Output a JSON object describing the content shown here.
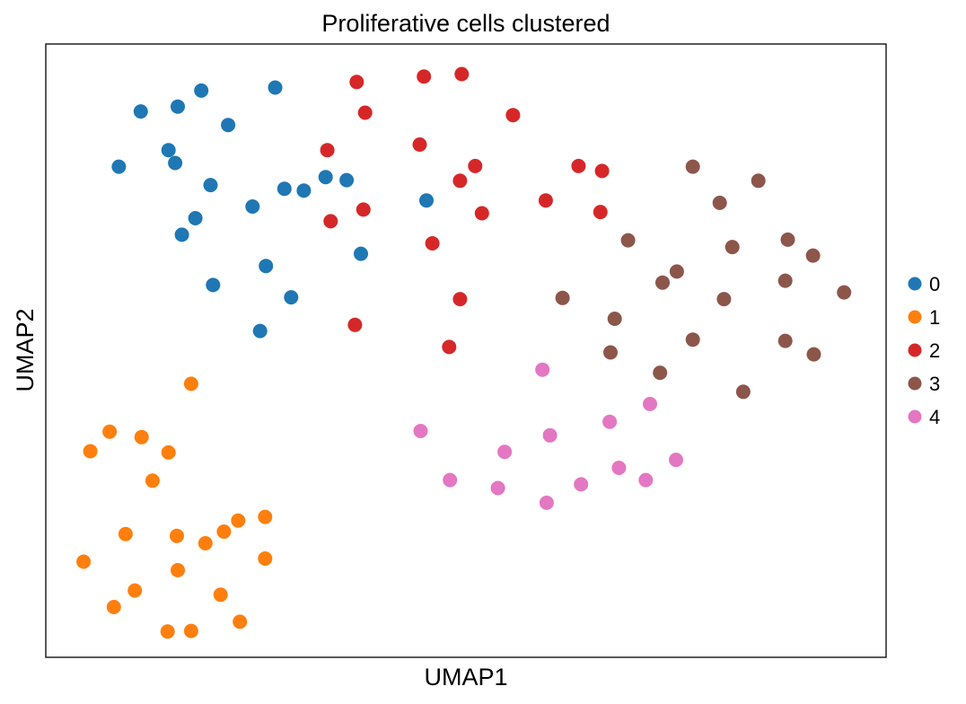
{
  "chart_data": {
    "type": "scatter",
    "title": "Proliferative cells clustered",
    "xlabel": "UMAP1",
    "ylabel": "UMAP2",
    "xlim": [
      0,
      100
    ],
    "ylim": [
      0,
      100
    ],
    "grid": false,
    "legend_position": "right",
    "series": [
      {
        "name": "0",
        "color": "#1f77b4",
        "points": [
          [
            8.7,
            80.0
          ],
          [
            11.3,
            89.0
          ],
          [
            14.6,
            82.7
          ],
          [
            15.7,
            89.8
          ],
          [
            15.4,
            80.6
          ],
          [
            18.5,
            92.4
          ],
          [
            16.2,
            68.9
          ],
          [
            17.8,
            71.6
          ],
          [
            21.7,
            86.8
          ],
          [
            19.6,
            77.0
          ],
          [
            19.9,
            60.7
          ],
          [
            24.6,
            73.5
          ],
          [
            27.3,
            92.9
          ],
          [
            26.2,
            63.8
          ],
          [
            29.2,
            58.7
          ],
          [
            28.4,
            76.4
          ],
          [
            30.7,
            76.1
          ],
          [
            33.3,
            78.3
          ],
          [
            35.8,
            77.8
          ],
          [
            37.5,
            65.8
          ],
          [
            25.5,
            53.2
          ],
          [
            45.3,
            74.5
          ]
        ]
      },
      {
        "name": "1",
        "color": "#ff7f0e",
        "points": [
          [
            17.3,
            44.6
          ],
          [
            7.6,
            36.8
          ],
          [
            11.4,
            35.9
          ],
          [
            5.3,
            33.6
          ],
          [
            14.6,
            33.4
          ],
          [
            12.7,
            28.8
          ],
          [
            9.5,
            20.1
          ],
          [
            15.6,
            19.8
          ],
          [
            19.0,
            18.6
          ],
          [
            21.2,
            20.5
          ],
          [
            22.9,
            22.3
          ],
          [
            26.1,
            22.9
          ],
          [
            4.5,
            15.6
          ],
          [
            15.7,
            14.2
          ],
          [
            10.6,
            10.9
          ],
          [
            8.1,
            8.2
          ],
          [
            20.8,
            10.2
          ],
          [
            26.1,
            16.1
          ],
          [
            14.5,
            4.2
          ],
          [
            17.3,
            4.3
          ],
          [
            23.1,
            5.8
          ]
        ]
      },
      {
        "name": "2",
        "color": "#d62728",
        "points": [
          [
            37.0,
            93.8
          ],
          [
            45.0,
            94.7
          ],
          [
            49.5,
            95.1
          ],
          [
            38.0,
            88.8
          ],
          [
            55.6,
            88.4
          ],
          [
            33.5,
            82.7
          ],
          [
            44.5,
            83.6
          ],
          [
            51.1,
            80.1
          ],
          [
            49.3,
            77.7
          ],
          [
            63.4,
            80.1
          ],
          [
            66.2,
            79.3
          ],
          [
            33.9,
            71.1
          ],
          [
            37.8,
            73.0
          ],
          [
            51.9,
            72.4
          ],
          [
            59.5,
            74.5
          ],
          [
            66.0,
            72.6
          ],
          [
            46.0,
            67.5
          ],
          [
            49.3,
            58.4
          ],
          [
            36.8,
            54.2
          ],
          [
            48.0,
            50.6
          ]
        ]
      },
      {
        "name": "3",
        "color": "#8c564b",
        "points": [
          [
            77.0,
            80.0
          ],
          [
            84.8,
            77.7
          ],
          [
            80.2,
            74.1
          ],
          [
            69.3,
            68.0
          ],
          [
            81.7,
            66.9
          ],
          [
            88.3,
            68.1
          ],
          [
            91.3,
            65.5
          ],
          [
            75.1,
            62.9
          ],
          [
            73.4,
            61.1
          ],
          [
            88.0,
            61.4
          ],
          [
            61.5,
            58.6
          ],
          [
            80.7,
            58.4
          ],
          [
            95.0,
            59.5
          ],
          [
            67.7,
            55.2
          ],
          [
            77.0,
            51.8
          ],
          [
            88.0,
            51.6
          ],
          [
            67.2,
            49.7
          ],
          [
            91.4,
            49.4
          ],
          [
            73.1,
            46.4
          ],
          [
            83.0,
            43.3
          ]
        ]
      },
      {
        "name": "4",
        "color": "#e377c2",
        "points": [
          [
            59.1,
            46.9
          ],
          [
            71.9,
            41.3
          ],
          [
            67.1,
            38.4
          ],
          [
            44.6,
            36.9
          ],
          [
            60.0,
            36.2
          ],
          [
            54.6,
            33.5
          ],
          [
            68.2,
            30.9
          ],
          [
            75.0,
            32.2
          ],
          [
            48.1,
            28.9
          ],
          [
            53.8,
            27.6
          ],
          [
            63.7,
            28.2
          ],
          [
            71.4,
            28.9
          ],
          [
            59.6,
            25.2
          ]
        ]
      }
    ]
  }
}
